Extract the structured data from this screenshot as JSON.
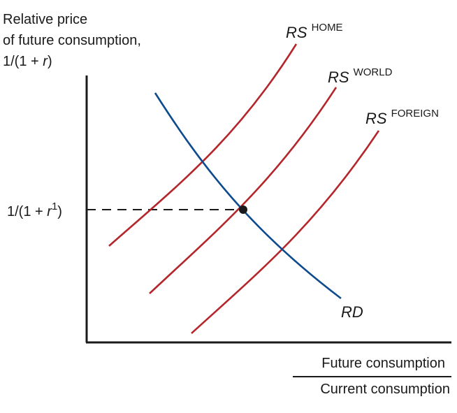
{
  "y_axis": {
    "label_lines": [
      "Relative price",
      "of future consumption,"
    ],
    "label_line3_prefix": "1/(1 + ",
    "label_line3_var": "r",
    "label_line3_suffix": ")"
  },
  "equilibrium_tick": {
    "prefix": "1/(1 + ",
    "var": "r",
    "sup": "1",
    "suffix": ")"
  },
  "x_axis": {
    "numerator": "Future consumption",
    "denominator": "Current consumption"
  },
  "curves": {
    "rs_home": {
      "name": "RS",
      "sup": "HOME"
    },
    "rs_world": {
      "name": "RS",
      "sup": "WORLD"
    },
    "rs_foreign": {
      "name": "RS",
      "sup": "FOREIGN"
    },
    "rd": {
      "name": "RD"
    }
  },
  "colors": {
    "supply": "#b5262b",
    "demand": "#0d4a8e",
    "axis": "#1a1a1a"
  }
}
